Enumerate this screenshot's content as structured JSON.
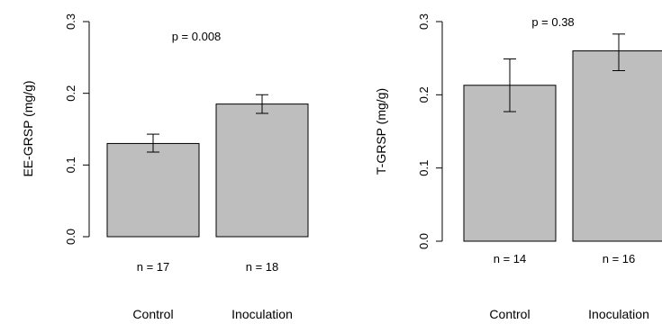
{
  "chart_data": [
    {
      "type": "bar",
      "ylabel": "EE-GRSP (mg/g)",
      "ylim": [
        0,
        0.3
      ],
      "yticks": [
        "0.0",
        "0.1",
        "0.2",
        "0.3"
      ],
      "categories": [
        "Control",
        "Inoculation"
      ],
      "values": [
        0.13,
        0.185
      ],
      "error_low": [
        0.118,
        0.172
      ],
      "error_high": [
        0.143,
        0.198
      ],
      "n_labels": [
        "n = 17",
        "n = 18"
      ],
      "annotation": "p = 0.008",
      "bar_color": "#bebebe",
      "grid": false
    },
    {
      "type": "bar",
      "ylabel": "T-GRSP (mg/g)",
      "ylim": [
        0,
        0.3
      ],
      "yticks": [
        "0.0",
        "0.1",
        "0.2",
        "0.3"
      ],
      "categories": [
        "Control",
        "Inoculation"
      ],
      "values": [
        0.213,
        0.26
      ],
      "error_low": [
        0.177,
        0.233
      ],
      "error_high": [
        0.249,
        0.283
      ],
      "n_labels": [
        "n = 14",
        "n = 16"
      ],
      "annotation": "p = 0.38",
      "bar_color": "#bebebe",
      "grid": false
    }
  ]
}
